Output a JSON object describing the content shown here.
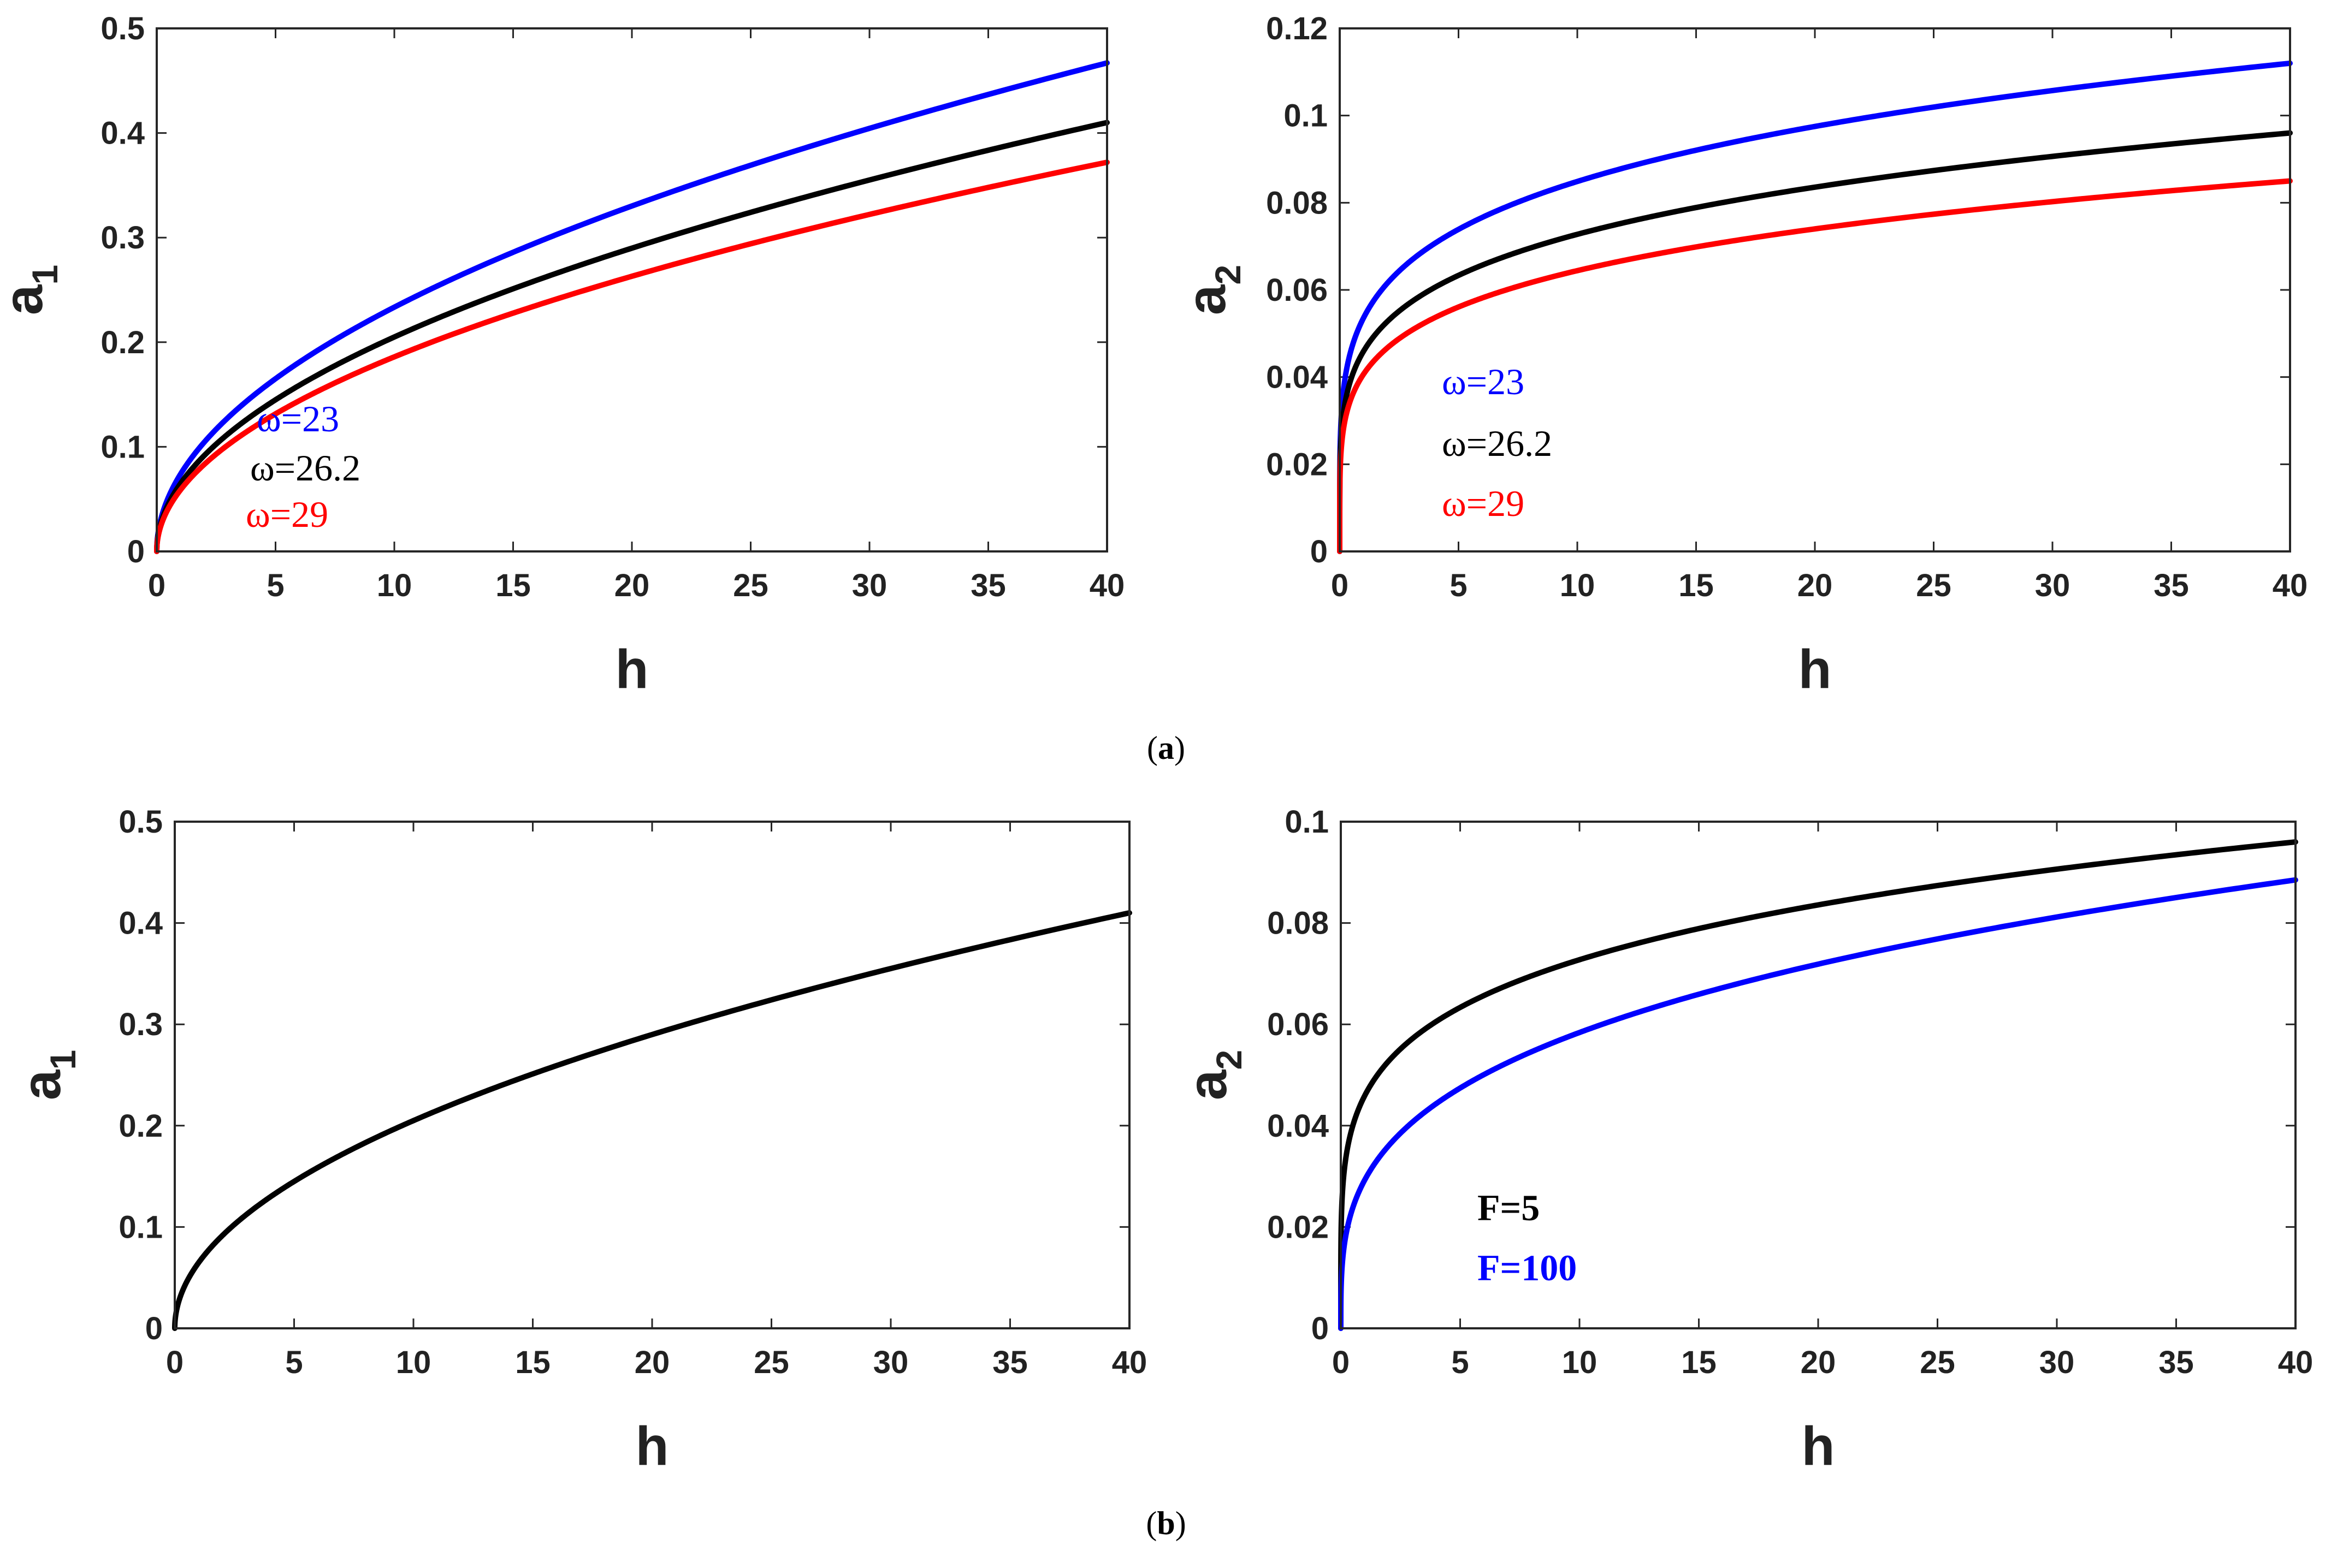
{
  "chart_data": [
    {
      "type": "line",
      "panel": "a",
      "xlabel": "h",
      "ylabel": {
        "main": "a",
        "sub": "1"
      },
      "xlim": [
        0,
        40
      ],
      "ylim": [
        0,
        0.5
      ],
      "xticks": [
        0,
        5,
        10,
        15,
        20,
        25,
        30,
        35,
        40
      ],
      "xtick_labels": [
        "0",
        "5",
        "10",
        "15",
        "20",
        "25",
        "30",
        "35",
        "40"
      ],
      "yticks": [
        0,
        0.1,
        0.2,
        0.3,
        0.4,
        0.5
      ],
      "ytick_labels": [
        "0",
        "0.1",
        "0.2",
        "0.3",
        "0.4",
        "0.5"
      ],
      "series": [
        {
          "name": "ω=23",
          "color": "#0000ff",
          "exponent": 0.5,
          "x": [
            0,
            1,
            5,
            10,
            20,
            30,
            40
          ],
          "y": [
            0,
            0.074,
            0.165,
            0.233,
            0.33,
            0.404,
            0.467
          ]
        },
        {
          "name": "ω=26.2",
          "color": "#000000",
          "exponent": 0.5,
          "x": [
            0,
            1,
            5,
            10,
            20,
            30,
            40
          ],
          "y": [
            0,
            0.065,
            0.145,
            0.205,
            0.29,
            0.355,
            0.41
          ]
        },
        {
          "name": "ω=29",
          "color": "#ff0000",
          "exponent": 0.5,
          "x": [
            0,
            1,
            5,
            10,
            20,
            30,
            40
          ],
          "y": [
            0,
            0.059,
            0.132,
            0.186,
            0.263,
            0.322,
            0.372
          ]
        }
      ],
      "legend": [
        {
          "text": "ω=23",
          "color": "#0000ff",
          "bold": false
        },
        {
          "text": "ω=26.2",
          "color": "#000000",
          "bold": false
        },
        {
          "text": "ω=29",
          "color": "#ff0000",
          "bold": false
        }
      ],
      "legend_placement": "lower-left"
    },
    {
      "type": "line",
      "panel": "a",
      "xlabel": "h",
      "ylabel": {
        "main": "a",
        "sub": "2"
      },
      "xlim": [
        0,
        40
      ],
      "ylim": [
        0,
        0.12
      ],
      "xticks": [
        0,
        5,
        10,
        15,
        20,
        25,
        30,
        35,
        40
      ],
      "xtick_labels": [
        "0",
        "5",
        "10",
        "15",
        "20",
        "25",
        "30",
        "35",
        "40"
      ],
      "yticks": [
        0,
        0.02,
        0.04,
        0.06,
        0.08,
        0.1,
        0.12
      ],
      "ytick_labels": [
        "0",
        "0.02",
        "0.04",
        "0.06",
        "0.08",
        "0.1",
        "0.12"
      ],
      "series": [
        {
          "name": "ω=23",
          "color": "#0000ff",
          "exponent": 0.2,
          "x": [
            0,
            1,
            5,
            10,
            20,
            30,
            40
          ],
          "y": [
            0,
            0.0535,
            0.0739,
            0.0849,
            0.0975,
            0.1057,
            0.112
          ]
        },
        {
          "name": "ω=26.2",
          "color": "#000000",
          "exponent": 0.2,
          "x": [
            0,
            1,
            5,
            10,
            20,
            30,
            40
          ],
          "y": [
            0,
            0.0459,
            0.0634,
            0.0728,
            0.0836,
            0.0907,
            0.096
          ]
        },
        {
          "name": "ω=29",
          "color": "#ff0000",
          "exponent": 0.2,
          "x": [
            0,
            1,
            5,
            10,
            20,
            30,
            40
          ],
          "y": [
            0,
            0.0406,
            0.0561,
            0.0645,
            0.074,
            0.0803,
            0.085
          ]
        }
      ],
      "legend": [
        {
          "text": "ω=23",
          "color": "#0000ff",
          "bold": false
        },
        {
          "text": "ω=26.2",
          "color": "#000000",
          "bold": false
        },
        {
          "text": "ω=29",
          "color": "#ff0000",
          "bold": false
        }
      ],
      "legend_placement": "lower-left"
    },
    {
      "type": "line",
      "panel": "b",
      "xlabel": "h",
      "ylabel": {
        "main": "a",
        "sub": "1"
      },
      "xlim": [
        0,
        40
      ],
      "ylim": [
        0,
        0.5
      ],
      "xticks": [
        0,
        5,
        10,
        15,
        20,
        25,
        30,
        35,
        40
      ],
      "xtick_labels": [
        "0",
        "5",
        "10",
        "15",
        "20",
        "25",
        "30",
        "35",
        "40"
      ],
      "yticks": [
        0,
        0.1,
        0.2,
        0.3,
        0.4,
        0.5
      ],
      "ytick_labels": [
        "0",
        "0.1",
        "0.2",
        "0.3",
        "0.4",
        "0.5"
      ],
      "series": [
        {
          "name": "F=5",
          "color": "#000000",
          "exponent": 0.5,
          "x": [
            0,
            1,
            5,
            10,
            20,
            30,
            40
          ],
          "y": [
            0,
            0.065,
            0.145,
            0.205,
            0.29,
            0.355,
            0.41
          ]
        }
      ],
      "legend": [],
      "legend_placement": "none"
    },
    {
      "type": "line",
      "panel": "b",
      "xlabel": "h",
      "ylabel": {
        "main": "a",
        "sub": "2"
      },
      "xlim": [
        0,
        40
      ],
      "ylim": [
        0,
        0.1
      ],
      "xticks": [
        0,
        5,
        10,
        15,
        20,
        25,
        30,
        35,
        40
      ],
      "xtick_labels": [
        "0",
        "5",
        "10",
        "15",
        "20",
        "25",
        "30",
        "35",
        "40"
      ],
      "yticks": [
        0,
        0.02,
        0.04,
        0.06,
        0.08,
        0.1
      ],
      "ytick_labels": [
        "0",
        "0.02",
        "0.04",
        "0.06",
        "0.08",
        "0.1"
      ],
      "series": [
        {
          "name": "F=5",
          "color": "#000000",
          "exponent": 0.2,
          "x": [
            0,
            1,
            5,
            10,
            20,
            30,
            40
          ],
          "y": [
            0,
            0.0459,
            0.0634,
            0.0728,
            0.0836,
            0.0907,
            0.096
          ]
        },
        {
          "name": "F=100",
          "color": "#0000ff",
          "exponent": 0.3,
          "x": [
            0,
            1,
            5,
            10,
            20,
            30,
            40
          ],
          "y": [
            0,
            0.0292,
            0.0473,
            0.0583,
            0.0717,
            0.081,
            0.0885
          ]
        }
      ],
      "legend": [
        {
          "text": "F=5",
          "color": "#000000",
          "bold": true
        },
        {
          "text": "F=100",
          "color": "#0000ff",
          "bold": true
        }
      ],
      "legend_placement": "lower-left"
    }
  ],
  "captions": {
    "a": "a",
    "b": "b"
  }
}
